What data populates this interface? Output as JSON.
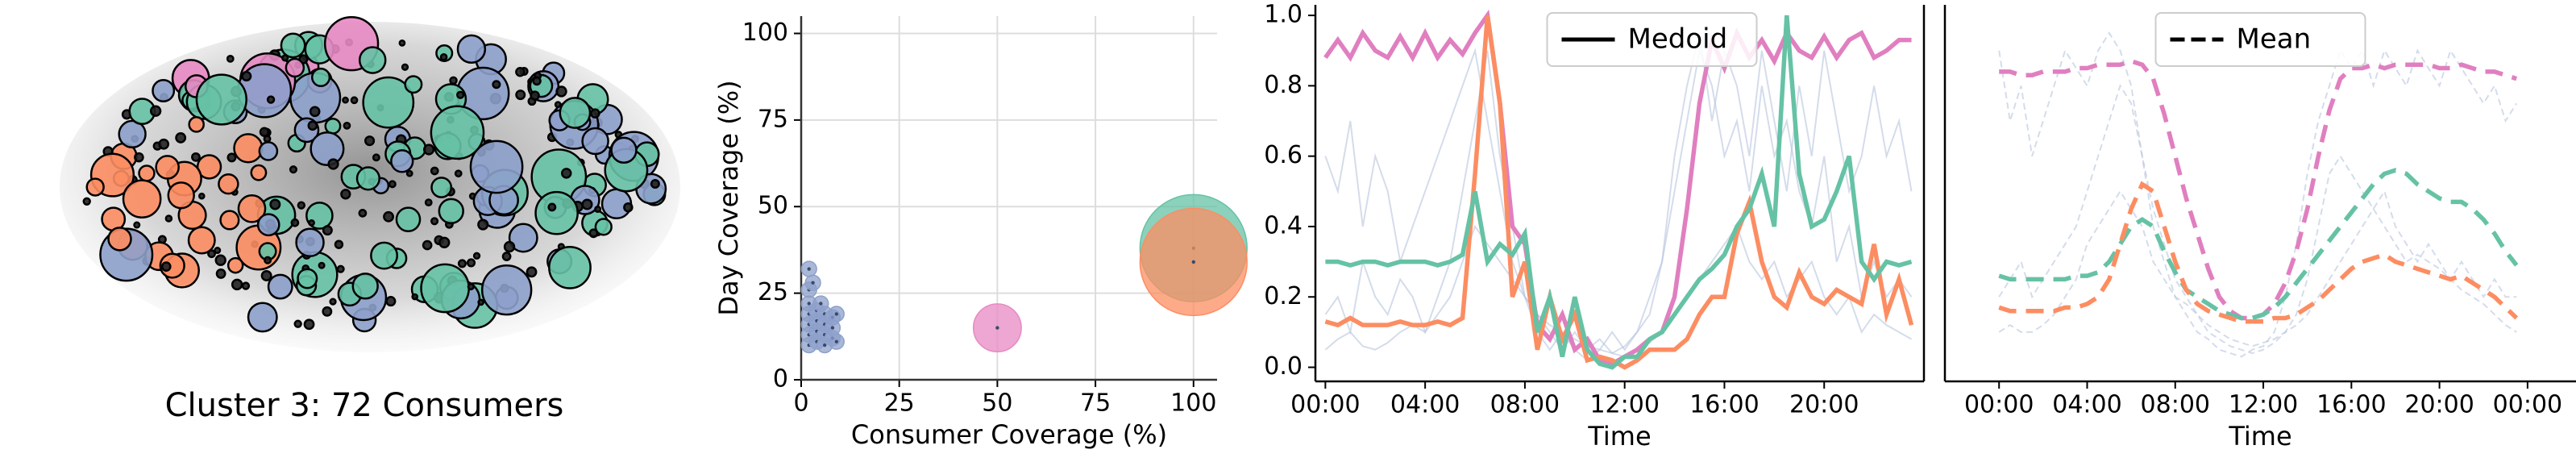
{
  "network": {
    "caption": "Cluster 3: 72 Consumers"
  },
  "chart_data": [
    {
      "type": "scatter",
      "xlabel": "Consumer Coverage (%)",
      "ylabel": "Day Coverage (%)",
      "xlim": [
        0,
        106
      ],
      "ylim": [
        0,
        105
      ],
      "xticks": [
        0,
        25,
        50,
        75,
        100
      ],
      "yticks": [
        0,
        25,
        50,
        75,
        100
      ],
      "grid": true,
      "series": [
        {
          "color": "#8da0cb",
          "x": [
            2,
            2,
            2,
            2,
            2,
            2,
            2,
            4,
            4,
            4,
            4,
            6,
            6,
            6,
            6,
            8,
            8,
            8,
            9,
            9,
            3,
            5
          ],
          "y": [
            32,
            26,
            22,
            19,
            16,
            13,
            10,
            20,
            17,
            14,
            11,
            19,
            16,
            13,
            10,
            18,
            15,
            12,
            19,
            11,
            28,
            22
          ],
          "sizes": [
            20,
            20,
            20,
            20,
            20,
            20,
            20,
            20,
            20,
            20,
            20,
            20,
            20,
            20,
            20,
            20,
            20,
            20,
            20,
            20,
            20,
            20
          ]
        },
        {
          "color": "#e78ac3",
          "x": [
            50
          ],
          "y": [
            15
          ],
          "sizes": [
            200
          ]
        },
        {
          "color": "#66c2a5",
          "x": [
            100
          ],
          "y": [
            38
          ],
          "sizes": [
            1000
          ]
        },
        {
          "color": "#fc8d62",
          "x": [
            100
          ],
          "y": [
            34
          ],
          "sizes": [
            1000
          ]
        }
      ]
    },
    {
      "type": "line",
      "xlabel": "Time",
      "xlim": [
        -0.4,
        24
      ],
      "ylim": [
        -0.04,
        1.03
      ],
      "xticks": [
        {
          "value": 0,
          "label": "00:00"
        },
        {
          "value": 4,
          "label": "04:00"
        },
        {
          "value": 8,
          "label": "08:00"
        },
        {
          "value": 12,
          "label": "12:00"
        },
        {
          "value": 16,
          "label": "16:00"
        },
        {
          "value": 20,
          "label": "20:00"
        }
      ],
      "yticks": [
        {
          "value": 0,
          "label": "0.0"
        },
        0.2,
        0.4,
        0.6,
        0.8,
        {
          "value": 1,
          "label": "1.0"
        }
      ],
      "legend": {
        "label": "Medoid",
        "dashed": false,
        "position": "upper center"
      },
      "x": [
        0,
        0.5,
        1,
        1.5,
        2,
        2.5,
        3,
        3.5,
        4,
        4.5,
        5,
        5.5,
        6,
        6.5,
        7,
        7.5,
        8,
        8.5,
        9,
        9.5,
        10,
        10.5,
        11,
        11.5,
        12,
        12.5,
        13,
        13.5,
        14,
        14.5,
        15,
        15.5,
        16,
        16.5,
        17,
        17.5,
        18,
        18.5,
        19,
        19.5,
        20,
        20.5,
        21,
        21.5,
        22,
        22.5,
        23,
        23.5
      ],
      "background_color": "#b8c4de",
      "background_lines": [
        {
          "values": [
            0.15,
            0.2,
            0.1,
            0.3,
            0.2,
            0.15,
            0.25,
            0.2,
            0.1,
            0.2,
            0.3,
            0.5,
            0.7,
            0.9,
            0.6,
            0.4,
            0.2,
            0.1,
            0.05,
            0.1,
            0.05,
            0.02,
            0.05,
            0.1,
            0.05,
            0.1,
            0.2,
            0.3,
            0.5,
            0.7,
            0.9,
            0.8,
            0.6,
            0.7,
            0.5,
            0.8,
            0.6,
            0.7,
            0.5,
            0.4,
            0.6,
            0.3,
            0.4,
            0.2,
            0.3,
            0.2,
            0.25,
            0.2
          ]
        },
        {
          "values": [
            0.6,
            0.5,
            0.7,
            0.4,
            0.6,
            0.5,
            0.3,
            0.4,
            0.5,
            0.6,
            0.7,
            0.8,
            0.9,
            0.7,
            0.5,
            0.3,
            0.2,
            0.15,
            0.1,
            0.05,
            0.1,
            0.05,
            0.08,
            0.04,
            0.06,
            0.1,
            0.15,
            0.3,
            0.6,
            0.8,
            0.95,
            0.7,
            0.9,
            0.8,
            0.6,
            0.9,
            0.7,
            0.5,
            0.8,
            0.6,
            0.9,
            0.7,
            0.5,
            0.6,
            0.8,
            0.6,
            0.7,
            0.5
          ]
        },
        {
          "values": [
            0.05,
            0.08,
            0.1,
            0.06,
            0.05,
            0.07,
            0.1,
            0.12,
            0.1,
            0.15,
            0.2,
            0.3,
            0.4,
            0.35,
            0.3,
            0.25,
            0.2,
            0.15,
            0.12,
            0.1,
            0.08,
            0.06,
            0.05,
            0.04,
            0.03,
            0.05,
            0.07,
            0.1,
            0.15,
            0.2,
            0.25,
            0.3,
            0.35,
            0.4,
            0.3,
            0.25,
            0.3,
            0.2,
            0.25,
            0.3,
            0.2,
            0.15,
            0.2,
            0.1,
            0.15,
            0.12,
            0.1,
            0.08
          ]
        }
      ],
      "series": [
        {
          "color": "#e07fc0",
          "values": [
            0.88,
            0.93,
            0.88,
            0.95,
            0.9,
            0.88,
            0.94,
            0.88,
            0.95,
            0.88,
            0.93,
            0.89,
            0.95,
            1.0,
            0.75,
            0.4,
            0.35,
            0.12,
            0.08,
            0.15,
            0.05,
            0.08,
            0.02,
            0.01,
            0.03,
            0.05,
            0.08,
            0.1,
            0.2,
            0.45,
            0.75,
            0.93,
            0.85,
            0.95,
            0.88,
            0.93,
            0.87,
            0.95,
            0.9,
            0.88,
            0.94,
            0.88,
            0.93,
            0.95,
            0.88,
            0.9,
            0.93,
            0.93
          ]
        },
        {
          "color": "#fc8d62",
          "values": [
            0.13,
            0.12,
            0.14,
            0.12,
            0.12,
            0.12,
            0.13,
            0.12,
            0.12,
            0.13,
            0.12,
            0.14,
            0.55,
            1.0,
            0.75,
            0.2,
            0.3,
            0.05,
            0.2,
            0.08,
            0.15,
            0.02,
            0.03,
            0.02,
            0.0,
            0.02,
            0.05,
            0.05,
            0.05,
            0.08,
            0.15,
            0.2,
            0.2,
            0.38,
            0.47,
            0.3,
            0.2,
            0.17,
            0.27,
            0.2,
            0.18,
            0.22,
            0.2,
            0.18,
            0.35,
            0.15,
            0.25,
            0.12
          ]
        },
        {
          "color": "#66c2a5",
          "values": [
            0.3,
            0.3,
            0.29,
            0.3,
            0.3,
            0.29,
            0.3,
            0.3,
            0.3,
            0.29,
            0.3,
            0.32,
            0.5,
            0.3,
            0.35,
            0.32,
            0.38,
            0.1,
            0.2,
            0.03,
            0.2,
            0.05,
            0.01,
            0.0,
            0.03,
            0.03,
            0.08,
            0.1,
            0.15,
            0.2,
            0.25,
            0.28,
            0.32,
            0.4,
            0.45,
            0.55,
            0.4,
            1.0,
            0.55,
            0.4,
            0.42,
            0.5,
            0.6,
            0.3,
            0.25,
            0.3,
            0.29,
            0.3
          ]
        }
      ]
    },
    {
      "type": "line",
      "xlabel": "Time",
      "xlim": [
        -2.46,
        26.2
      ],
      "ylim": [
        -0.04,
        1.03
      ],
      "dashed": true,
      "xticks": [
        {
          "value": 0,
          "label": "00:00"
        },
        {
          "value": 4,
          "label": "04:00"
        },
        {
          "value": 8,
          "label": "08:00"
        },
        {
          "value": 12,
          "label": "12:00"
        },
        {
          "value": 16,
          "label": "16:00"
        },
        {
          "value": 20,
          "label": "20:00"
        },
        {
          "value": 24,
          "label": "00:00"
        }
      ],
      "legend": {
        "label": "Mean",
        "dashed": true,
        "position": "upper center"
      },
      "x": [
        0,
        0.5,
        1,
        1.5,
        2,
        2.5,
        3,
        3.5,
        4,
        4.5,
        5,
        5.5,
        6,
        6.5,
        7,
        7.5,
        8,
        8.5,
        9,
        9.5,
        10,
        10.5,
        11,
        11.5,
        12,
        12.5,
        13,
        13.5,
        14,
        14.5,
        15,
        15.5,
        16,
        16.5,
        17,
        17.5,
        18,
        18.5,
        19,
        19.5,
        20,
        20.5,
        21,
        21.5,
        22,
        22.5,
        23,
        23.5
      ],
      "background_color": "#b8c4de",
      "background_lines": [
        {
          "values": [
            0.2,
            0.25,
            0.3,
            0.2,
            0.25,
            0.3,
            0.35,
            0.4,
            0.5,
            0.6,
            0.7,
            0.8,
            0.75,
            0.6,
            0.45,
            0.35,
            0.25,
            0.2,
            0.15,
            0.1,
            0.08,
            0.06,
            0.05,
            0.04,
            0.05,
            0.07,
            0.1,
            0.15,
            0.25,
            0.4,
            0.55,
            0.6,
            0.55,
            0.5,
            0.45,
            0.5,
            0.4,
            0.35,
            0.3,
            0.35,
            0.3,
            0.25,
            0.3,
            0.25,
            0.2,
            0.25,
            0.2,
            0.2
          ]
        },
        {
          "values": [
            0.9,
            0.7,
            0.8,
            0.6,
            0.7,
            0.8,
            0.9,
            0.85,
            0.8,
            0.9,
            0.95,
            0.9,
            0.8,
            0.6,
            0.4,
            0.3,
            0.2,
            0.15,
            0.1,
            0.08,
            0.05,
            0.04,
            0.03,
            0.05,
            0.06,
            0.1,
            0.2,
            0.35,
            0.55,
            0.7,
            0.8,
            0.9,
            0.85,
            0.9,
            0.8,
            0.9,
            0.85,
            0.8,
            0.9,
            0.85,
            0.8,
            0.9,
            0.85,
            0.8,
            0.75,
            0.8,
            0.7,
            0.75
          ]
        },
        {
          "values": [
            0.1,
            0.12,
            0.1,
            0.1,
            0.12,
            0.15,
            0.2,
            0.25,
            0.35,
            0.4,
            0.45,
            0.5,
            0.45,
            0.4,
            0.3,
            0.25,
            0.2,
            0.18,
            0.15,
            0.12,
            0.1,
            0.08,
            0.07,
            0.06,
            0.07,
            0.08,
            0.1,
            0.12,
            0.15,
            0.2,
            0.25,
            0.3,
            0.35,
            0.4,
            0.45,
            0.4,
            0.35,
            0.3,
            0.32,
            0.3,
            0.28,
            0.25,
            0.22,
            0.2,
            0.18,
            0.15,
            0.12,
            0.1
          ]
        }
      ],
      "series": [
        {
          "color": "#e07fc0",
          "values": [
            0.84,
            0.84,
            0.83,
            0.83,
            0.84,
            0.84,
            0.84,
            0.85,
            0.85,
            0.86,
            0.86,
            0.86,
            0.87,
            0.86,
            0.82,
            0.72,
            0.6,
            0.48,
            0.38,
            0.28,
            0.2,
            0.16,
            0.14,
            0.14,
            0.15,
            0.18,
            0.24,
            0.33,
            0.45,
            0.6,
            0.73,
            0.82,
            0.85,
            0.85,
            0.86,
            0.85,
            0.86,
            0.86,
            0.86,
            0.86,
            0.85,
            0.85,
            0.86,
            0.85,
            0.84,
            0.84,
            0.83,
            0.82
          ]
        },
        {
          "color": "#66c2a5",
          "values": [
            0.26,
            0.25,
            0.25,
            0.25,
            0.25,
            0.25,
            0.25,
            0.26,
            0.26,
            0.27,
            0.3,
            0.35,
            0.4,
            0.42,
            0.4,
            0.33,
            0.27,
            0.22,
            0.2,
            0.18,
            0.16,
            0.15,
            0.14,
            0.14,
            0.15,
            0.17,
            0.2,
            0.24,
            0.28,
            0.32,
            0.36,
            0.4,
            0.44,
            0.48,
            0.52,
            0.55,
            0.56,
            0.55,
            0.52,
            0.5,
            0.48,
            0.47,
            0.47,
            0.45,
            0.42,
            0.38,
            0.33,
            0.29
          ]
        },
        {
          "color": "#fc8d62",
          "values": [
            0.17,
            0.16,
            0.16,
            0.16,
            0.16,
            0.16,
            0.17,
            0.17,
            0.18,
            0.2,
            0.25,
            0.35,
            0.45,
            0.52,
            0.5,
            0.4,
            0.3,
            0.22,
            0.18,
            0.16,
            0.15,
            0.14,
            0.13,
            0.13,
            0.13,
            0.14,
            0.14,
            0.15,
            0.17,
            0.19,
            0.22,
            0.25,
            0.28,
            0.3,
            0.31,
            0.32,
            0.3,
            0.29,
            0.28,
            0.27,
            0.26,
            0.25,
            0.26,
            0.24,
            0.22,
            0.2,
            0.17,
            0.14
          ]
        }
      ]
    }
  ]
}
